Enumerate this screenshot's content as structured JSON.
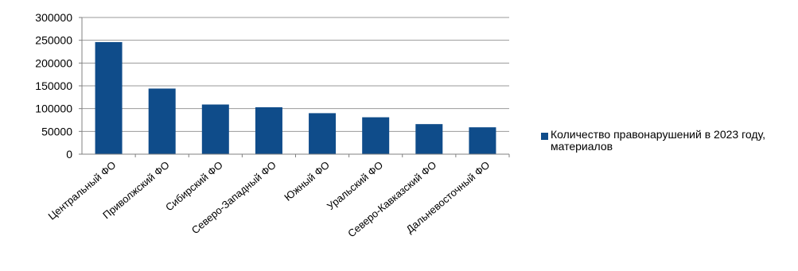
{
  "chart_data": {
    "type": "bar",
    "title": "",
    "xlabel": "",
    "ylabel": "",
    "categories": [
      "Центральный ФО",
      "Приволжский ФО",
      "Сибирский ФО",
      "Северо-Западный ФО",
      "Южный ФО",
      "Уральский ФО",
      "Северо-Кавказский ФО",
      "Дальневосточный ФО"
    ],
    "series": [
      {
        "name": "Количество правонарушений в 2023 году, материалов",
        "values": [
          246000,
          144000,
          109000,
          103000,
          90000,
          81000,
          66000,
          59000
        ],
        "color": "#0F4C8A"
      }
    ],
    "ylim": [
      0,
      300000
    ],
    "yticks": [
      "0",
      "50000",
      "100000",
      "150000",
      "200000",
      "250000",
      "300000"
    ],
    "grid": true,
    "legend_position": "right"
  }
}
